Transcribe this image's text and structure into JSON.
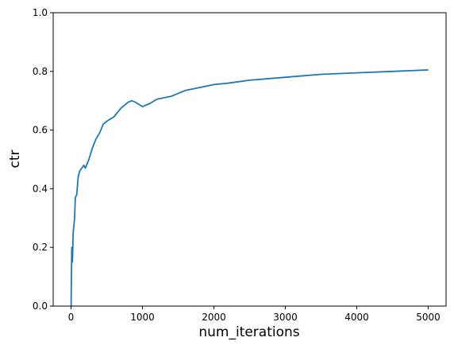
{
  "chart_data": {
    "type": "line",
    "x_label": "num_iterations",
    "y_label": "ctr",
    "x": [
      1,
      5,
      10,
      20,
      30,
      50,
      60,
      80,
      100,
      120,
      150,
      180,
      200,
      250,
      300,
      350,
      400,
      450,
      500,
      600,
      650,
      700,
      800,
      850,
      900,
      1000,
      1100,
      1200,
      1400,
      1600,
      1800,
      2000,
      2200,
      2500,
      3000,
      3500,
      4000,
      4500,
      5000
    ],
    "series": [
      {
        "color": "#1f77b4",
        "values": [
          0.0,
          0.1,
          0.2,
          0.15,
          0.25,
          0.3,
          0.37,
          0.38,
          0.44,
          0.46,
          0.47,
          0.48,
          0.47,
          0.5,
          0.54,
          0.57,
          0.59,
          0.62,
          0.63,
          0.645,
          0.66,
          0.675,
          0.695,
          0.7,
          0.695,
          0.68,
          0.69,
          0.705,
          0.715,
          0.735,
          0.745,
          0.755,
          0.76,
          0.77,
          0.78,
          0.79,
          0.795,
          0.8,
          0.805
        ]
      }
    ],
    "xlim": [
      -250,
      5250
    ],
    "ylim": [
      0,
      1
    ],
    "xticks": [
      0,
      1000,
      2000,
      3000,
      4000,
      5000
    ],
    "yticks": [
      {
        "value": 0,
        "label": "0.0"
      },
      0.2,
      0.4,
      0.6,
      0.8,
      {
        "value": 1,
        "label": "1.0"
      }
    ]
  }
}
